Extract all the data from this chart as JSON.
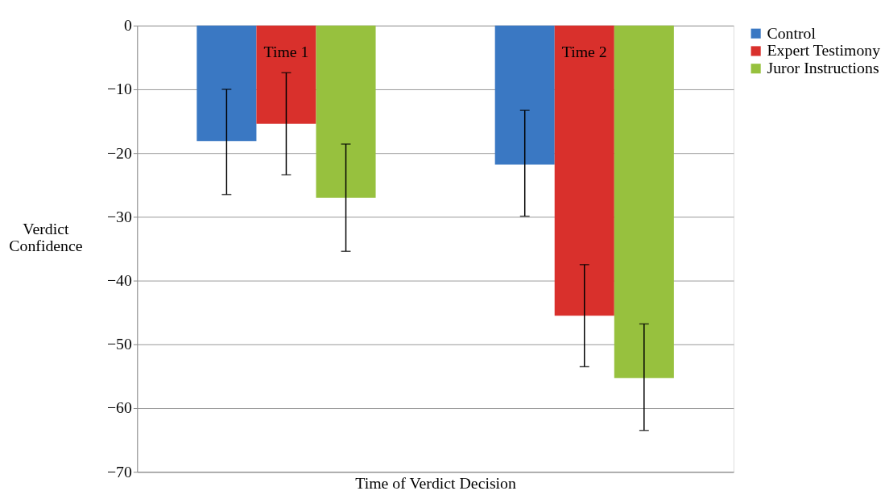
{
  "chart_data": {
    "type": "bar",
    "xlabel": "Time of Verdict Decision",
    "ylabel": "Verdict Confidence",
    "categories": [
      "Time 1",
      "Time 2"
    ],
    "series": [
      {
        "name": "Control",
        "color": "#3a78c3",
        "values": [
          -18.1,
          -21.8
        ],
        "errors": [
          [
            -26.5,
            -10
          ],
          [
            -29.9,
            -13.3
          ]
        ]
      },
      {
        "name": "Expert Testimony",
        "color": "#d9302c",
        "values": [
          -15.4,
          -45.5
        ],
        "errors": [
          [
            -23.4,
            -7.4
          ],
          [
            -53.5,
            -37.5
          ]
        ]
      },
      {
        "name": "Juror Instructions",
        "color": "#97c13e",
        "values": [
          -27,
          -55.3
        ],
        "errors": [
          [
            -35.4,
            -18.6
          ],
          [
            -63.5,
            -46.8
          ]
        ]
      }
    ],
    "ylim": [
      -70,
      0
    ],
    "yticks": [
      -70,
      -60,
      -50,
      -40,
      -30,
      -20,
      -10,
      0
    ],
    "grid": "y",
    "legend": "right"
  }
}
